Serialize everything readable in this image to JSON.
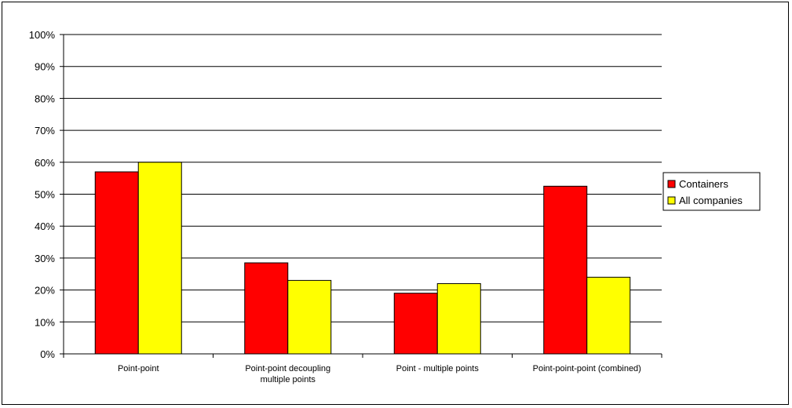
{
  "chart_data": {
    "type": "bar",
    "categories": [
      [
        "Point-point"
      ],
      [
        "Point-point decoupling",
        "multiple points"
      ],
      [
        "Point - multiple points"
      ],
      [
        "Point-point-point (combined)"
      ]
    ],
    "series": [
      {
        "name": "Containers",
        "color": "#ff0000",
        "values": [
          57,
          28.5,
          19,
          52.5
        ]
      },
      {
        "name": "All companies",
        "color": "#ffff00",
        "values": [
          60,
          23,
          22,
          24
        ]
      }
    ],
    "yticks": [
      "0%",
      "10%",
      "20%",
      "30%",
      "40%",
      "50%",
      "60%",
      "70%",
      "80%",
      "90%",
      "100%"
    ],
    "ylim": [
      0,
      100
    ],
    "grid": true,
    "legend": "right"
  }
}
